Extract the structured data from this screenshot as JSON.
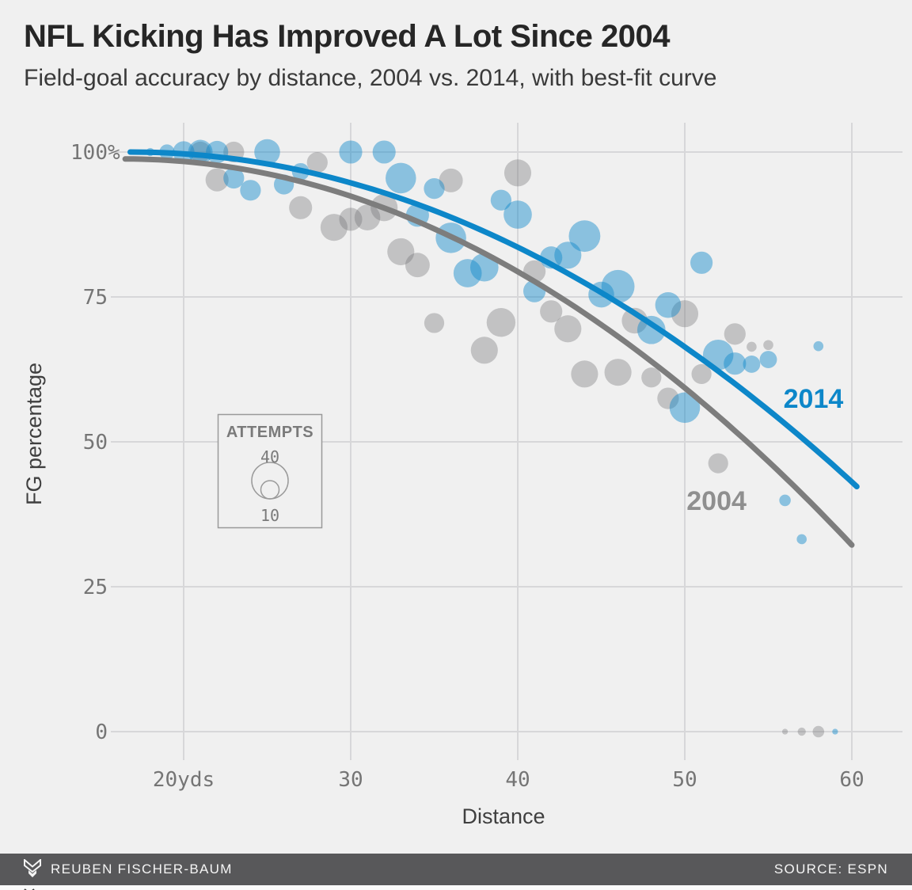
{
  "header": {
    "title": "NFL Kicking Has Improved A Lot Since 2004",
    "subtitle": "Field-goal accuracy by distance, 2004 vs. 2014, with best-fit curve"
  },
  "chart_data": {
    "type": "scatter",
    "title": "NFL Kicking Has Improved A Lot Since 2004",
    "subtitle": "Field-goal accuracy by distance, 2004 vs. 2014, with best-fit curve",
    "xlabel": "Distance",
    "ylabel": "FG percentage",
    "grid": true,
    "xlim": [
      15.7,
      63
    ],
    "ylim": [
      0,
      100
    ],
    "x_ticks": [
      {
        "value": 20,
        "label": "20yds"
      },
      {
        "value": 30,
        "label": "30"
      },
      {
        "value": 40,
        "label": "40"
      },
      {
        "value": 50,
        "label": "50"
      },
      {
        "value": 60,
        "label": "60"
      }
    ],
    "y_ticks": [
      {
        "value": 100,
        "label": "100",
        "suffix": "%"
      },
      {
        "value": 75,
        "label": "75",
        "suffix": ""
      },
      {
        "value": 50,
        "label": "50",
        "suffix": ""
      },
      {
        "value": 25,
        "label": "25",
        "suffix": ""
      },
      {
        "value": 0,
        "label": "0",
        "suffix": ""
      }
    ],
    "legend": {
      "title": "ATTEMPTS",
      "items": [
        {
          "value": 40,
          "label": "40"
        },
        {
          "value": 10,
          "label": "10"
        }
      ]
    },
    "point_format": [
      "distance_yds",
      "fg_pct",
      "attempts"
    ],
    "series": [
      {
        "name": "2004",
        "bubble_color": "rgba(110,110,112,0.35)",
        "line_color": "#7d7d7d",
        "label_color": "#8f8f8f",
        "label_at": {
          "distance": 51.9,
          "pct": 39.9
        },
        "fit_curve": {
          "p0": 98.8,
          "d0": 16.5,
          "a": 0.0352,
          "domain": [
            16.5,
            60.2
          ]
        },
        "points": [
          [
            21,
            100,
            13
          ],
          [
            22,
            95.2,
            16
          ],
          [
            23,
            100,
            13
          ],
          [
            27,
            90.4,
            16
          ],
          [
            28,
            98.2,
            13
          ],
          [
            29,
            87,
            22
          ],
          [
            30,
            88.4,
            16
          ],
          [
            31,
            88.7,
            20
          ],
          [
            32,
            90.4,
            22
          ],
          [
            33,
            82.8,
            22
          ],
          [
            34,
            80.5,
            18
          ],
          [
            35,
            70.5,
            12
          ],
          [
            36,
            95.1,
            17
          ],
          [
            38,
            65.8,
            22
          ],
          [
            39,
            70.6,
            25
          ],
          [
            40,
            96.4,
            22
          ],
          [
            41,
            79.4,
            15
          ],
          [
            42,
            72.5,
            15
          ],
          [
            43,
            69.5,
            22
          ],
          [
            44,
            61.7,
            22
          ],
          [
            46,
            62,
            22
          ],
          [
            47,
            70.9,
            20
          ],
          [
            48,
            61.1,
            12
          ],
          [
            49,
            57.5,
            14
          ],
          [
            50,
            72.1,
            22
          ],
          [
            51,
            61.7,
            12
          ],
          [
            52,
            46.3,
            12
          ],
          [
            53,
            68.6,
            14
          ],
          [
            54,
            66.4,
            3
          ],
          [
            55,
            66.7,
            3
          ],
          [
            56,
            0,
            1
          ],
          [
            57,
            0,
            2
          ],
          [
            58,
            0,
            4
          ]
        ]
      },
      {
        "name": "2014",
        "bubble_color": "rgba(13,135,201,0.45)",
        "line_color": "#0d87c9",
        "label_color": "#0d87c9",
        "label_at": {
          "distance": 57.7,
          "pct": 57.5
        },
        "fit_curve": {
          "p0": 100,
          "d0": 16.8,
          "a": 0.0305,
          "domain": [
            16.8,
            60.3
          ]
        },
        "points": [
          [
            18,
            100,
            2
          ],
          [
            19,
            100,
            7
          ],
          [
            20,
            100,
            14
          ],
          [
            21,
            100,
            18
          ],
          [
            22,
            100,
            15
          ],
          [
            23,
            95.5,
            13
          ],
          [
            24,
            93.4,
            13
          ],
          [
            25,
            100,
            20
          ],
          [
            26,
            94.4,
            12
          ],
          [
            27,
            96.6,
            9
          ],
          [
            30,
            100,
            16
          ],
          [
            32,
            100,
            16
          ],
          [
            33,
            95.5,
            28
          ],
          [
            34,
            89.1,
            16
          ],
          [
            35,
            93.7,
            13
          ],
          [
            36,
            85.2,
            28
          ],
          [
            37,
            79.1,
            24
          ],
          [
            38,
            80.1,
            24
          ],
          [
            39,
            91.7,
            13
          ],
          [
            40,
            89.2,
            24
          ],
          [
            41,
            76,
            15
          ],
          [
            42,
            81.8,
            15
          ],
          [
            43,
            82.2,
            22
          ],
          [
            44,
            85.5,
            30
          ],
          [
            45,
            75.4,
            20
          ],
          [
            46,
            76.8,
            33
          ],
          [
            48,
            69.3,
            24
          ],
          [
            49,
            73.6,
            20
          ],
          [
            50,
            55.9,
            28
          ],
          [
            51,
            80.9,
            15
          ],
          [
            52,
            65,
            28
          ],
          [
            53,
            63.5,
            15
          ],
          [
            54,
            63.4,
            9
          ],
          [
            55,
            64.2,
            9
          ],
          [
            56,
            39.9,
            4
          ],
          [
            57,
            33.2,
            3
          ],
          [
            58,
            66.5,
            3
          ],
          [
            59,
            0,
            1
          ]
        ]
      }
    ],
    "layout_hints": {
      "legend_position": "inside-left-middle",
      "series_labels_inline": true,
      "bubble_area_by": "attempts"
    }
  },
  "colors": {
    "background": "#f0f0f0",
    "gridline": "#d7d7d9",
    "blue": "#0d87c9",
    "gray": "#7d7d7d",
    "tick_text": "#757575",
    "footer_bg": "#58585a"
  },
  "footer": {
    "attribution": "REUBEN FISCHER-BAUM",
    "source": "SOURCE: ESPN"
  }
}
